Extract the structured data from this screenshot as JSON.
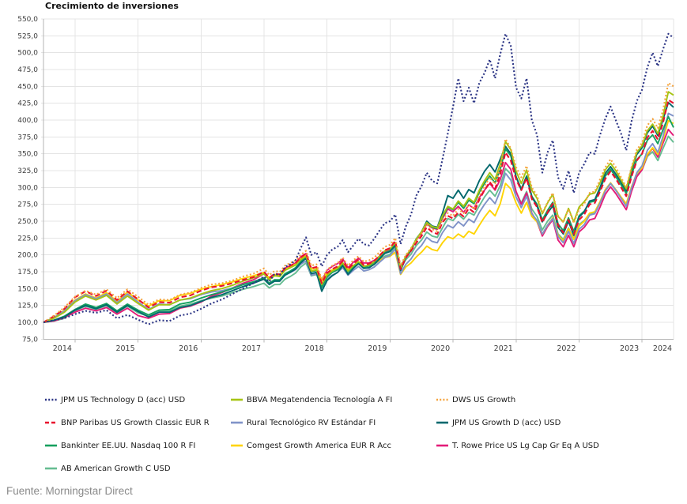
{
  "title": "Crecimiento de inversiones",
  "source": "Fuente: Morningstar Direct",
  "chart_data": {
    "type": "line",
    "title": "Crecimiento de inversiones",
    "ylabel": "",
    "xlabel": "",
    "ylim": [
      75,
      550
    ],
    "ytick_step": 25,
    "grid": true,
    "legend_position": "bottom",
    "ytick_labels": [
      "550,0",
      "525,0",
      "500,0",
      "475,0",
      "450,0",
      "425,0",
      "400,0",
      "375,0",
      "350,0",
      "325,0",
      "300,0",
      "275,0",
      "250,0",
      "225,0",
      "200,0",
      "175,0",
      "150,0",
      "125,0",
      "100,0",
      "75,0"
    ],
    "xtick_labels": [
      "2014",
      "2015",
      "2016",
      "2017",
      "2018",
      "2019",
      "2020",
      "2021",
      "2022",
      "2023",
      "2024"
    ],
    "axis_color": "#b5b5b5",
    "grid_color": "#e4e4e4",
    "tick_text_color": "#3d3d3d",
    "x": [
      2014.5,
      2014.667,
      2014.833,
      2015,
      2015.167,
      2015.333,
      2015.5,
      2015.667,
      2015.833,
      2016,
      2016.167,
      2016.333,
      2016.5,
      2016.667,
      2016.833,
      2017,
      2017.167,
      2017.333,
      2017.5,
      2017.667,
      2017.833,
      2018,
      2018.083,
      2018.167,
      2018.25,
      2018.333,
      2018.417,
      2018.5,
      2018.583,
      2018.667,
      2018.75,
      2018.833,
      2018.917,
      2019,
      2019.083,
      2019.167,
      2019.25,
      2019.333,
      2019.417,
      2019.5,
      2019.583,
      2019.667,
      2019.75,
      2019.833,
      2019.917,
      2020,
      2020.083,
      2020.167,
      2020.25,
      2020.333,
      2020.417,
      2020.5,
      2020.583,
      2020.667,
      2020.75,
      2020.833,
      2020.917,
      2021,
      2021.083,
      2021.167,
      2021.25,
      2021.333,
      2021.417,
      2021.5,
      2021.583,
      2021.667,
      2021.75,
      2021.833,
      2021.917,
      2022,
      2022.083,
      2022.167,
      2022.25,
      2022.333,
      2022.417,
      2022.5,
      2022.583,
      2022.667,
      2022.75,
      2022.833,
      2022.917,
      2023,
      2023.083,
      2023.167,
      2023.25,
      2023.333,
      2023.417,
      2023.5,
      2023.583,
      2023.667,
      2023.75,
      2023.833,
      2023.917,
      2024,
      2024.083,
      2024.167,
      2024.25,
      2024.333,
      2024.417,
      2024.5
    ],
    "series": [
      {
        "name": "JPM US Technology D (acc) USD",
        "color": "#2a3384",
        "dash": "dot",
        "values": [
          100,
          103,
          106,
          112,
          117,
          114,
          118,
          106,
          111,
          104,
          97,
          103,
          102,
          110,
          113,
          120,
          128,
          134,
          142,
          150,
          158,
          168,
          160,
          172,
          170,
          182,
          186,
          192,
          210,
          226,
          200,
          204,
          183,
          200,
          208,
          212,
          222,
          204,
          214,
          224,
          216,
          214,
          224,
          236,
          247,
          250,
          260,
          216,
          242,
          260,
          288,
          302,
          322,
          310,
          306,
          342,
          380,
          420,
          462,
          428,
          448,
          425,
          455,
          470,
          490,
          462,
          498,
          528,
          510,
          448,
          432,
          462,
          400,
          378,
          322,
          352,
          370,
          315,
          298,
          325,
          292,
          322,
          335,
          352,
          350,
          378,
          402,
          420,
          400,
          380,
          355,
          398,
          428,
          445,
          478,
          500,
          480,
          505,
          528,
          522
        ]
      },
      {
        "name": "BBVA Megatendencia Tecnología A FI",
        "color": "#a6c413",
        "dash": "solid",
        "values": [
          100,
          106,
          115,
          130,
          139,
          133,
          140,
          127,
          139,
          128,
          118,
          126,
          126,
          133,
          136,
          142,
          147,
          150,
          155,
          161,
          166,
          172,
          163,
          169,
          168,
          177,
          181,
          185,
          193,
          198,
          176,
          178,
          156,
          170,
          176,
          180,
          188,
          176,
          184,
          190,
          183,
          185,
          190,
          198,
          206,
          209,
          218,
          179,
          198,
          209,
          223,
          234,
          248,
          242,
          240,
          258,
          272,
          268,
          280,
          272,
          284,
          278,
          296,
          310,
          322,
          312,
          335,
          368,
          356,
          324,
          306,
          326,
          296,
          284,
          261,
          277,
          290,
          257,
          249,
          269,
          249,
          271,
          279,
          290,
          292,
          307,
          326,
          336,
          325,
          311,
          298,
          328,
          352,
          362,
          384,
          394,
          380,
          406,
          442,
          437
        ]
      },
      {
        "name": "DWS US Growth",
        "color": "#f5a33c",
        "dash": "dot",
        "values": [
          100,
          110,
          122,
          138,
          147,
          141,
          149,
          136,
          149,
          138,
          126,
          134,
          133,
          141,
          144,
          151,
          156,
          158,
          162,
          168,
          172,
          180,
          170,
          176,
          175,
          184,
          188,
          192,
          200,
          206,
          184,
          186,
          164,
          178,
          184,
          188,
          196,
          184,
          192,
          198,
          190,
          192,
          196,
          204,
          212,
          215,
          225,
          184,
          200,
          210,
          222,
          232,
          245,
          238,
          235,
          252,
          262,
          258,
          268,
          262,
          275,
          268,
          288,
          302,
          315,
          305,
          330,
          372,
          358,
          330,
          315,
          332,
          300,
          288,
          262,
          278,
          292,
          258,
          248,
          268,
          247,
          268,
          276,
          292,
          294,
          312,
          330,
          342,
          330,
          315,
          300,
          330,
          356,
          366,
          392,
          402,
          388,
          415,
          455,
          450
        ]
      },
      {
        "name": "BNP Paribas US Growth Classic EUR R",
        "color": "#e8112d",
        "dash": "dash",
        "values": [
          100,
          109,
          120,
          137,
          146,
          139,
          147,
          133,
          146,
          134,
          122,
          130,
          129,
          137,
          140,
          147,
          152,
          154,
          158,
          163,
          167,
          175,
          166,
          172,
          171,
          180,
          184,
          188,
          196,
          202,
          180,
          182,
          158,
          173,
          179,
          183,
          191,
          179,
          187,
          193,
          185,
          187,
          191,
          199,
          207,
          210,
          221,
          179,
          196,
          206,
          218,
          228,
          241,
          234,
          231,
          248,
          258,
          254,
          263,
          257,
          269,
          263,
          282,
          296,
          308,
          298,
          320,
          352,
          340,
          312,
          296,
          314,
          283,
          271,
          248,
          263,
          276,
          244,
          233,
          252,
          231,
          252,
          260,
          275,
          277,
          294,
          313,
          324,
          313,
          300,
          287,
          316,
          340,
          350,
          374,
          384,
          371,
          396,
          430,
          425
        ]
      },
      {
        "name": "Rural Tecnológico RV Estándar FI",
        "color": "#8093c8",
        "dash": "solid",
        "values": [
          100,
          107,
          117,
          132,
          141,
          135,
          142,
          129,
          142,
          130,
          119,
          127,
          126,
          133,
          135,
          141,
          145,
          147,
          151,
          156,
          160,
          166,
          158,
          163,
          162,
          170,
          174,
          178,
          186,
          191,
          170,
          172,
          151,
          164,
          170,
          174,
          181,
          170,
          177,
          183,
          176,
          178,
          182,
          189,
          196,
          199,
          209,
          172,
          186,
          194,
          206,
          214,
          226,
          220,
          218,
          233,
          244,
          240,
          249,
          243,
          253,
          248,
          263,
          275,
          285,
          276,
          295,
          321,
          311,
          286,
          270,
          287,
          261,
          251,
          231,
          244,
          254,
          227,
          218,
          235,
          217,
          238,
          245,
          259,
          261,
          277,
          295,
          306,
          296,
          284,
          272,
          299,
          322,
          332,
          355,
          365,
          352,
          376,
          410,
          406
        ]
      },
      {
        "name": "JPM US Growth D (acc) USD",
        "color": "#02686d",
        "dash": "solid",
        "values": [
          100,
          103,
          108,
          118,
          125,
          120,
          126,
          115,
          125,
          116,
          108,
          115,
          115,
          122,
          125,
          131,
          137,
          141,
          147,
          153,
          158,
          164,
          156,
          161,
          161,
          170,
          174,
          179,
          188,
          195,
          172,
          174,
          146,
          162,
          169,
          174,
          184,
          171,
          180,
          187,
          180,
          181,
          186,
          194,
          202,
          205,
          214,
          177,
          196,
          207,
          223,
          234,
          250,
          243,
          241,
          262,
          288,
          284,
          296,
          284,
          297,
          292,
          310,
          324,
          334,
          323,
          342,
          361,
          350,
          316,
          296,
          316,
          286,
          273,
          249,
          262,
          273,
          241,
          231,
          250,
          229,
          256,
          264,
          280,
          282,
          300,
          321,
          331,
          320,
          308,
          295,
          325,
          349,
          359,
          381,
          391,
          377,
          401,
          426,
          419
        ]
      },
      {
        "name": "Bankinter EE.UU. Nasdaq 100 R FI",
        "color": "#16a05f",
        "dash": "solid",
        "values": [
          100,
          103,
          109,
          119,
          127,
          122,
          128,
          117,
          127,
          118,
          111,
          118,
          119,
          127,
          130,
          136,
          141,
          145,
          150,
          156,
          160,
          166,
          158,
          163,
          163,
          172,
          176,
          181,
          190,
          197,
          175,
          177,
          152,
          167,
          174,
          178,
          187,
          175,
          183,
          189,
          182,
          184,
          189,
          196,
          203,
          206,
          217,
          181,
          198,
          208,
          224,
          234,
          248,
          241,
          239,
          256,
          271,
          267,
          278,
          269,
          281,
          276,
          293,
          306,
          317,
          307,
          327,
          357,
          347,
          316,
          298,
          317,
          287,
          275,
          252,
          266,
          278,
          246,
          236,
          255,
          235,
          258,
          265,
          278,
          280,
          297,
          317,
          327,
          316,
          304,
          291,
          319,
          341,
          350,
          370,
          378,
          365,
          386,
          405,
          389
        ]
      },
      {
        "name": "Comgest Growth America EUR R Acc",
        "color": "#ffd402",
        "dash": "solid",
        "values": [
          100,
          107,
          118,
          133,
          142,
          136,
          144,
          131,
          145,
          133,
          124,
          132,
          132,
          140,
          143,
          149,
          153,
          156,
          160,
          165,
          169,
          174,
          166,
          171,
          170,
          178,
          182,
          186,
          194,
          199,
          179,
          181,
          161,
          173,
          178,
          181,
          188,
          178,
          184,
          189,
          183,
          184,
          187,
          192,
          196,
          198,
          204,
          171,
          182,
          188,
          197,
          204,
          213,
          208,
          206,
          218,
          227,
          224,
          231,
          226,
          235,
          231,
          244,
          256,
          266,
          258,
          276,
          306,
          298,
          277,
          262,
          278,
          257,
          249,
          231,
          244,
          255,
          229,
          221,
          239,
          223,
          243,
          250,
          262,
          264,
          279,
          297,
          307,
          297,
          286,
          276,
          301,
          321,
          329,
          349,
          359,
          349,
          371,
          399,
          395
        ]
      },
      {
        "name": "T. Rowe Price US Lg Cap Gr Eq A USD",
        "color": "#e31c79",
        "dash": "solid",
        "values": [
          100,
          102,
          107,
          115,
          121,
          117,
          122,
          112,
          121,
          110,
          106,
          112,
          113,
          121,
          124,
          130,
          139,
          144,
          151,
          158,
          163,
          172,
          164,
          170,
          170,
          180,
          184,
          188,
          197,
          202,
          180,
          182,
          162,
          177,
          183,
          187,
          194,
          181,
          189,
          195,
          188,
          188,
          192,
          198,
          204,
          207,
          216,
          177,
          196,
          206,
          222,
          232,
          246,
          240,
          238,
          254,
          268,
          264,
          272,
          263,
          274,
          269,
          285,
          296,
          306,
          296,
          312,
          337,
          327,
          294,
          275,
          292,
          262,
          249,
          228,
          242,
          252,
          222,
          212,
          229,
          212,
          234,
          241,
          252,
          254,
          271,
          290,
          301,
          291,
          279,
          267,
          294,
          316,
          326,
          348,
          358,
          345,
          366,
          386,
          377
        ]
      },
      {
        "name": "AB American Growth C USD",
        "color": "#66bd92",
        "dash": "solid",
        "values": [
          100,
          102,
          106,
          117,
          124,
          119,
          125,
          114,
          124,
          114,
          109,
          116,
          117,
          124,
          127,
          132,
          136,
          139,
          144,
          149,
          153,
          158,
          151,
          156,
          156,
          164,
          168,
          173,
          182,
          188,
          169,
          171,
          155,
          168,
          174,
          178,
          185,
          174,
          181,
          187,
          181,
          182,
          186,
          192,
          198,
          201,
          211,
          179,
          193,
          201,
          214,
          222,
          234,
          228,
          226,
          240,
          254,
          251,
          260,
          253,
          263,
          259,
          273,
          286,
          296,
          287,
          303,
          328,
          320,
          293,
          277,
          294,
          268,
          257,
          237,
          250,
          259,
          231,
          223,
          240,
          224,
          245,
          251,
          261,
          263,
          278,
          296,
          306,
          296,
          285,
          274,
          298,
          318,
          326,
          346,
          353,
          340,
          358,
          376,
          367
        ]
      }
    ]
  }
}
